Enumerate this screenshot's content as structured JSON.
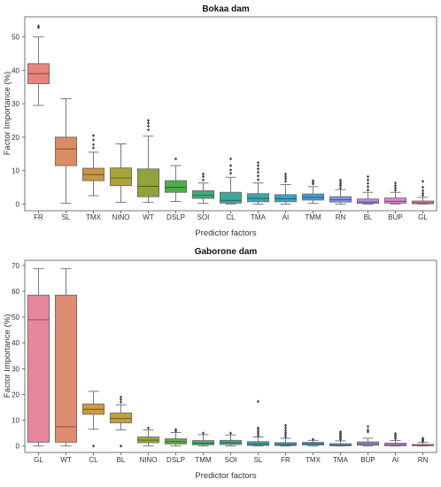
{
  "chart_data": [
    {
      "type": "box",
      "title": "Bokaa dam",
      "xlabel": "Predictor factors",
      "ylabel": "Factor Importance (%)",
      "ylim": [
        -2,
        56
      ],
      "yticks": [
        0,
        10,
        20,
        30,
        40,
        50
      ],
      "grid": false,
      "categories": [
        "FR",
        "SL",
        "TMX",
        "NINO",
        "WT",
        "DSLP",
        "SOI",
        "CL",
        "TMA",
        "AI",
        "TMM",
        "RN",
        "BL",
        "BUP",
        "GL"
      ],
      "boxes": [
        {
          "name": "FR",
          "color": "#e8837e",
          "whislo": 29.5,
          "q1": 36,
          "med": 39,
          "q3": 42,
          "whishi": 50,
          "fliers": [
            52.8,
            53.3
          ]
        },
        {
          "name": "SL",
          "color": "#dc8c61",
          "whislo": 0.2,
          "q1": 11.5,
          "med": 16.5,
          "q3": 20,
          "whishi": 31.5,
          "fliers": []
        },
        {
          "name": "TMX",
          "color": "#c8963e",
          "whislo": 2.5,
          "q1": 7,
          "med": 8.8,
          "q3": 10.7,
          "whishi": 15.5,
          "fliers": [
            16.8,
            17.8,
            19.2,
            20.5
          ]
        },
        {
          "name": "NINO",
          "color": "#a9a33d",
          "whislo": 0.5,
          "q1": 5.5,
          "med": 7.8,
          "q3": 10.8,
          "whishi": 18,
          "fliers": []
        },
        {
          "name": "WT",
          "color": "#8fa43a",
          "whislo": 0.5,
          "q1": 2.2,
          "med": 5.3,
          "q3": 10.5,
          "whishi": 20.3,
          "fliers": [
            22.2,
            23.3,
            24.2,
            25
          ]
        },
        {
          "name": "DSLP",
          "color": "#4dae49",
          "whislo": 0.8,
          "q1": 3.5,
          "med": 5,
          "q3": 7,
          "whishi": 11.5,
          "fliers": [
            13.5
          ]
        },
        {
          "name": "SOI",
          "color": "#40ad7f",
          "whislo": 0.2,
          "q1": 1.7,
          "med": 2.6,
          "q3": 4,
          "whishi": 6.3,
          "fliers": [
            7.2,
            8.2,
            9
          ]
        },
        {
          "name": "CL",
          "color": "#3aab99",
          "whislo": 0,
          "q1": 0.3,
          "med": 1.1,
          "q3": 3.5,
          "whishi": 8,
          "fliers": [
            9.2,
            10.2,
            11.5,
            13.5
          ]
        },
        {
          "name": "TMA",
          "color": "#3aa8ad",
          "whislo": 0,
          "q1": 0.7,
          "med": 1.7,
          "q3": 3.1,
          "whishi": 6.3,
          "fliers": [
            7.3,
            8.4,
            9.5,
            10.5,
            11.5,
            12.4
          ]
        },
        {
          "name": "AI",
          "color": "#3ca4c3",
          "whislo": 0,
          "q1": 0.7,
          "med": 1.6,
          "q3": 2.8,
          "whishi": 5.8,
          "fliers": [
            6.8,
            7.6,
            8.3,
            9
          ]
        },
        {
          "name": "TMM",
          "color": "#449edb",
          "whislo": 0.2,
          "q1": 1.2,
          "med": 2,
          "q3": 3,
          "whishi": 5.2,
          "fliers": [
            6,
            6.5,
            7
          ]
        },
        {
          "name": "RN",
          "color": "#8197e8",
          "whislo": 0,
          "q1": 0.6,
          "med": 1.3,
          "q3": 2.2,
          "whishi": 4.3,
          "fliers": [
            4.8,
            5.5,
            6,
            6.6,
            7.2
          ]
        },
        {
          "name": "BL",
          "color": "#b28ff0",
          "whislo": 0,
          "q1": 0.2,
          "med": 0.6,
          "q3": 1.5,
          "whishi": 3.5,
          "fliers": [
            4.2,
            5.2,
            6.2,
            7.2,
            8.2
          ]
        },
        {
          "name": "BUP",
          "color": "#db86dc",
          "whislo": 0,
          "q1": 0.3,
          "med": 0.8,
          "q3": 1.8,
          "whishi": 3.5,
          "fliers": [
            4.1,
            4.8,
            5.5,
            6.3
          ]
        },
        {
          "name": "GL",
          "color": "#ef84bf",
          "whislo": 0,
          "q1": 0.1,
          "med": 0.4,
          "q3": 0.9,
          "whishi": 2,
          "fliers": [
            2.6,
            3.2,
            4,
            5,
            6.8
          ]
        }
      ]
    },
    {
      "type": "box",
      "title": "Gaborone dam",
      "xlabel": "Predictor factors",
      "ylabel": "Factor Importance (%)",
      "ylim": [
        -2.5,
        72
      ],
      "yticks": [
        0,
        10,
        20,
        30,
        40,
        50,
        60,
        70
      ],
      "grid": false,
      "categories": [
        "GL",
        "WT",
        "CL",
        "BL",
        "NINO",
        "DSLP",
        "TMM",
        "SOI",
        "SL",
        "FR",
        "TMX",
        "TMA",
        "BUP",
        "AI",
        "RN"
      ],
      "boxes": [
        {
          "name": "GL",
          "color": "#e8869e",
          "whislo": 0,
          "q1": 1.5,
          "med": 49,
          "q3": 58.5,
          "whishi": 68.8,
          "fliers": []
        },
        {
          "name": "WT",
          "color": "#df8d72",
          "whislo": 0,
          "q1": 1.5,
          "med": 7.5,
          "q3": 58.5,
          "whishi": 68.8,
          "fliers": []
        },
        {
          "name": "CL",
          "color": "#d19a3e",
          "whislo": 6.5,
          "q1": 12.3,
          "med": 14.2,
          "q3": 16.3,
          "whishi": 21.2,
          "fliers": [
            0
          ]
        },
        {
          "name": "BL",
          "color": "#bfa23e",
          "whislo": 6.3,
          "q1": 9,
          "med": 10.7,
          "q3": 12.8,
          "whishi": 16,
          "fliers": [
            0,
            17,
            18,
            19
          ]
        },
        {
          "name": "NINO",
          "color": "#9eaa3c",
          "whislo": 0,
          "q1": 1.3,
          "med": 2.3,
          "q3": 3.5,
          "whishi": 6.2,
          "fliers": [
            7
          ]
        },
        {
          "name": "DSLP",
          "color": "#6aae47",
          "whislo": 0,
          "q1": 0.8,
          "med": 1.7,
          "q3": 2.8,
          "whishi": 5.2,
          "fliers": [
            5.8,
            6.4
          ]
        },
        {
          "name": "TMM",
          "color": "#45ad6f",
          "whislo": 0,
          "q1": 0.5,
          "med": 1.1,
          "q3": 2.1,
          "whishi": 4.4,
          "fliers": [
            5
          ]
        },
        {
          "name": "SOI",
          "color": "#3dad8e",
          "whislo": 0,
          "q1": 0.6,
          "med": 1.3,
          "q3": 2.2,
          "whishi": 4.3,
          "fliers": [
            5
          ]
        },
        {
          "name": "SL",
          "color": "#3babab",
          "whislo": 0,
          "q1": 0.2,
          "med": 0.8,
          "q3": 1.7,
          "whishi": 3.5,
          "fliers": [
            4,
            4.8,
            5.5,
            6.3,
            7,
            17.3
          ]
        },
        {
          "name": "FR",
          "color": "#3ca8bf",
          "whislo": 0,
          "q1": 0.2,
          "med": 0.6,
          "q3": 1.3,
          "whishi": 3,
          "fliers": [
            3.6,
            4.4,
            5.2,
            6,
            7,
            8
          ]
        },
        {
          "name": "TMX",
          "color": "#42a3d6",
          "whislo": 0,
          "q1": 0.4,
          "med": 0.9,
          "q3": 1.4,
          "whishi": 2.2,
          "fliers": [
            2.6
          ]
        },
        {
          "name": "TMA",
          "color": "#6b9ce6",
          "whislo": 0,
          "q1": 0.1,
          "med": 0.4,
          "q3": 0.9,
          "whishi": 2,
          "fliers": [
            2.5,
            3,
            3.5,
            4,
            4.5,
            5,
            5.5
          ]
        },
        {
          "name": "BUP",
          "color": "#a68fee",
          "whislo": 0,
          "q1": 0.3,
          "med": 0.9,
          "q3": 1.6,
          "whishi": 3,
          "fliers": [
            5.5,
            6.2,
            7.5
          ]
        },
        {
          "name": "AI",
          "color": "#d184e8",
          "whislo": 0,
          "q1": 0.1,
          "med": 0.5,
          "q3": 1.1,
          "whishi": 2.1,
          "fliers": [
            2.8,
            3.5,
            4.2,
            4.8
          ]
        },
        {
          "name": "RN",
          "color": "#ee84c8",
          "whislo": 0,
          "q1": 0.1,
          "med": 0.3,
          "q3": 0.6,
          "whishi": 1.4,
          "fliers": [
            1.8,
            2.2,
            2.6,
            3
          ]
        }
      ]
    }
  ]
}
